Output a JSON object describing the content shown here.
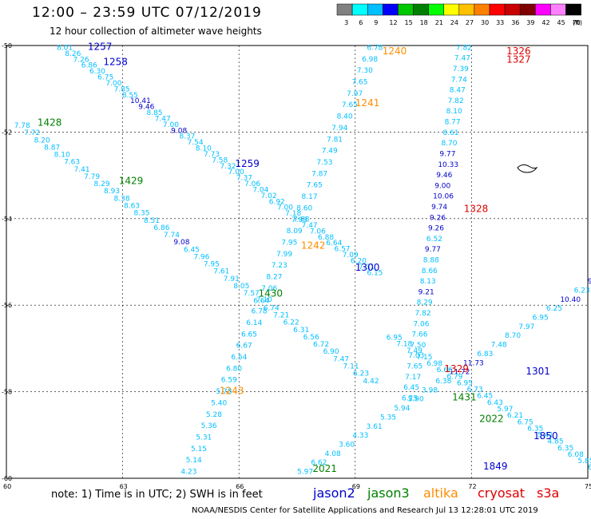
{
  "header": {
    "title": "12:00 – 23:59 UTC 07/12/2019",
    "subtitle": "12 hour collection of altimeter wave heights"
  },
  "colorbar": {
    "colors": [
      "#808080",
      "#00ffff",
      "#00bfff",
      "#0000ff",
      "#00c800",
      "#008000",
      "#00ff00",
      "#ffff00",
      "#ffc000",
      "#ff8000",
      "#ff0000",
      "#c80000",
      "#800000",
      "#ff00ff",
      "#ff80ff",
      "#000000"
    ],
    "labels": [
      "3",
      "6",
      "9",
      "12",
      "15",
      "18",
      "21",
      "24",
      "27",
      "30",
      "33",
      "36",
      "39",
      "42",
      "45",
      "70"
    ],
    "unit": "(ft)"
  },
  "map": {
    "lon_range": [
      60,
      75
    ],
    "lat_range": [
      -60,
      -50
    ],
    "lon_ticks": [
      "60",
      "63",
      "66",
      "69",
      "72",
      "75"
    ],
    "lat_ticks": [
      "-50",
      "-52",
      "-54",
      "-56",
      "-58",
      "-60"
    ]
  },
  "satellites": [
    {
      "name": "jason2",
      "color": "#0000cc"
    },
    {
      "name": "jason3",
      "color": "#008000"
    },
    {
      "name": "altika",
      "color": "#ff8c00"
    },
    {
      "name": "cryosat",
      "color": "#dd0000"
    },
    {
      "name": "s3a",
      "color": "#dd0000"
    }
  ],
  "time_labels": [
    {
      "text": "1257",
      "lon": 62.1,
      "lat": -50.1,
      "color": "#0000cc"
    },
    {
      "text": "1258",
      "lon": 62.5,
      "lat": -50.45,
      "color": "#0000cc"
    },
    {
      "text": "1259",
      "lon": 65.9,
      "lat": -52.8,
      "color": "#0000cc"
    },
    {
      "text": "1300",
      "lon": 69.0,
      "lat": -55.2,
      "color": "#0000cc"
    },
    {
      "text": "1301",
      "lon": 73.4,
      "lat": -57.6,
      "color": "#0000cc"
    },
    {
      "text": "1849",
      "lon": 72.3,
      "lat": -59.8,
      "color": "#0000cc"
    },
    {
      "text": "1850",
      "lon": 73.6,
      "lat": -59.1,
      "color": "#0000cc"
    },
    {
      "text": "1428",
      "lon": 60.8,
      "lat": -51.85,
      "color": "#008000"
    },
    {
      "text": "1429",
      "lon": 62.9,
      "lat": -53.2,
      "color": "#008000"
    },
    {
      "text": "1430",
      "lon": 66.5,
      "lat": -55.8,
      "color": "#008000"
    },
    {
      "text": "1431",
      "lon": 71.5,
      "lat": -58.2,
      "color": "#008000"
    },
    {
      "text": "2021",
      "lon": 67.9,
      "lat": -59.85,
      "color": "#008000"
    },
    {
      "text": "2022",
      "lon": 72.2,
      "lat": -58.7,
      "color": "#008000"
    },
    {
      "text": "1240",
      "lon": 69.7,
      "lat": -50.2,
      "color": "#ff8c00"
    },
    {
      "text": "1241",
      "lon": 69.0,
      "lat": -51.4,
      "color": "#ff8c00"
    },
    {
      "text": "1242",
      "lon": 67.6,
      "lat": -54.7,
      "color": "#ff8c00"
    },
    {
      "text": "1243",
      "lon": 65.5,
      "lat": -58.05,
      "color": "#ff8c00"
    },
    {
      "text": "1326",
      "lon": 72.9,
      "lat": -50.2,
      "color": "#dd0000"
    },
    {
      "text": "1327",
      "lon": 72.9,
      "lat": -50.4,
      "color": "#dd0000"
    },
    {
      "text": "1328",
      "lon": 71.8,
      "lat": -53.85,
      "color": "#dd0000"
    },
    {
      "text": "1329",
      "lon": 71.3,
      "lat": -57.55,
      "color": "#dd0000"
    }
  ],
  "tracks": [
    {
      "name": "jason2-pass-a",
      "start": [
        61.3,
        -50.1
      ],
      "end": [
        69.3,
        -55.3
      ],
      "values": [
        "8.01",
        "8.26",
        "7.26",
        "6.86",
        "6.30",
        "6.75",
        "7.00",
        "7.85",
        "8.55",
        "10.41",
        "9.46",
        "8.85",
        "7.47",
        "7.00",
        "9.08",
        "8.37",
        "7.54",
        "8.10",
        "7.73",
        "7.58",
        "7.32",
        "7.00",
        "7.37",
        "7.06",
        "7.04",
        "7.02",
        "6.92",
        "7.00",
        "7.18",
        "7.08",
        "7.47",
        "7.06",
        "6.88",
        "6.64",
        "6.57",
        "7.09",
        "6.20",
        "7.31",
        "6.15"
      ]
    },
    {
      "name": "jason3-pass-a",
      "start": [
        60.2,
        -51.9
      ],
      "end": [
        69.2,
        -57.8
      ],
      "values": [
        "7.78",
        "7.72",
        "8.20",
        "8.87",
        "8.10",
        "7.63",
        "7.41",
        "7.79",
        "8.29",
        "8.93",
        "8.38",
        "8.63",
        "8.35",
        "8.51",
        "6.86",
        "7.74",
        "9.08",
        "6.45",
        "7.96",
        "7.95",
        "7.61",
        "7.91",
        "8.05",
        "7.57",
        "6.64",
        "6.74",
        "7.21",
        "6.22",
        "6.31",
        "6.56",
        "6.72",
        "6.90",
        "7.47",
        "7.11",
        "6.23",
        "4.42"
      ]
    },
    {
      "name": "cryosat-pass-up",
      "start": [
        71.6,
        -50.1
      ],
      "end": [
        70.2,
        -58.2
      ],
      "values": [
        "7.82",
        "7.47",
        "7.39",
        "7.74",
        "8.47",
        "7.82",
        "8.10",
        "8.77",
        "8.61",
        "8.70",
        "9.77",
        "10.33",
        "9.46",
        "9.00",
        "10.06",
        "9.74",
        "9.26",
        "9.26",
        "6.52",
        "9.77",
        "8.88",
        "8.66",
        "8.13",
        "9.21",
        "8.29",
        "7.82",
        "7.06",
        "7.66",
        "7.50",
        "7.03",
        "7.65",
        "7.17",
        "6.45",
        "6.25"
      ]
    },
    {
      "name": "altika-pass-down",
      "start": [
        69.3,
        -50.1
      ],
      "end": [
        64.5,
        -59.9
      ],
      "values": [
        "6.78",
        "6.98",
        "7.30",
        "7.65",
        "7.97",
        "7.65",
        "8.40",
        "7.94",
        "7.81",
        "7.49",
        "7.53",
        "7.87",
        "7.65",
        "8.17",
        "8.60",
        "7.93",
        "8.09",
        "7.95",
        "7.99",
        "7.23",
        "8.27",
        "7.06",
        "7.10",
        "6.78",
        "6.14",
        "6.65",
        "6.67",
        "6.54",
        "6.80",
        "6.59",
        "5.78",
        "5.40",
        "5.28",
        "5.36",
        "5.31",
        "5.15",
        "5.14",
        "4.23"
      ]
    },
    {
      "name": "s3a-pass-diag",
      "start": [
        67.5,
        -59.9
      ],
      "end": [
        75.0,
        -55.5
      ],
      "values": [
        "5.97",
        "6.62",
        "4.08",
        "3.60",
        "4.33",
        "3.61",
        "5.35",
        "5.94",
        "5.90",
        "3.98",
        "6.38",
        "11.72",
        "11.73",
        "6.83",
        "7.48",
        "8.70",
        "7.97",
        "6.95",
        "6.25",
        "10.40",
        "6.23",
        "9.06"
      ]
    },
    {
      "name": "jason2-pass-b",
      "start": [
        69.8,
        -56.8
      ],
      "end": [
        75.0,
        -59.8
      ],
      "values": [
        "6.95",
        "7.18",
        "7.49",
        "7.15",
        "6.98",
        "6.66",
        "6.79",
        "6.95",
        "6.73",
        "6.45",
        "6.43",
        "5.97",
        "6.21",
        "6.75",
        "6.35",
        "5.41",
        "4.85",
        "6.35",
        "6.08",
        "5.85",
        "6.14"
      ]
    }
  ],
  "footer": {
    "note": "note:  1) Time is in UTC;  2) SWH is in feet",
    "credit": "NOAA/NESDIS Center for Satellite Applications and Research    Jul 13 12:28:01 UTC 2019"
  }
}
